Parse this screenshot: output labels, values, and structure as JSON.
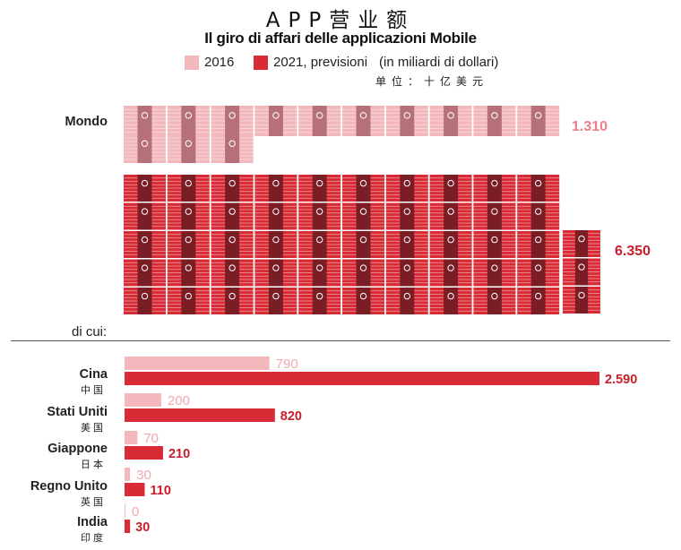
{
  "header": {
    "title_cn": "APP营业额",
    "title_it": "Il giro di affari delle applicazioni Mobile",
    "legend_2016": "2016",
    "legend_2021": "2021, previsioni",
    "legend_note": "(in miliardi di dollari)",
    "unit_cn": "单位：十亿美元"
  },
  "colors": {
    "c2016": "#f2b8bc",
    "c2021": "#d92b35",
    "total_2016_text": "#ee7f8c",
    "total_2021_text": "#c91d2b",
    "value_2016_text": "#f0a9af",
    "value_2021_text": "#c81d2b"
  },
  "world": {
    "label": "Mondo",
    "total_2016": "1.310",
    "total_2021": "6.350",
    "subset_label": "di cui:"
  },
  "chart_data": {
    "type": "bar",
    "orientation": "horizontal",
    "unit": "miliardi di dollari",
    "world": {
      "2016": 1310,
      "2021": 6350
    },
    "categories": [
      "Cina",
      "Stati Uniti",
      "Giappone",
      "Regno Unito",
      "India"
    ],
    "categories_cn": [
      "中国",
      "美国",
      "日本",
      "英国",
      "印度"
    ],
    "series": [
      {
        "name": "2016",
        "values": [
          790,
          200,
          70,
          30,
          0
        ],
        "labels": [
          "790",
          "200",
          "70",
          "30",
          "0"
        ]
      },
      {
        "name": "2021, previsioni",
        "values": [
          2590,
          820,
          210,
          110,
          30
        ],
        "labels": [
          "2.590",
          "820",
          "210",
          "110",
          "30"
        ]
      }
    ]
  }
}
